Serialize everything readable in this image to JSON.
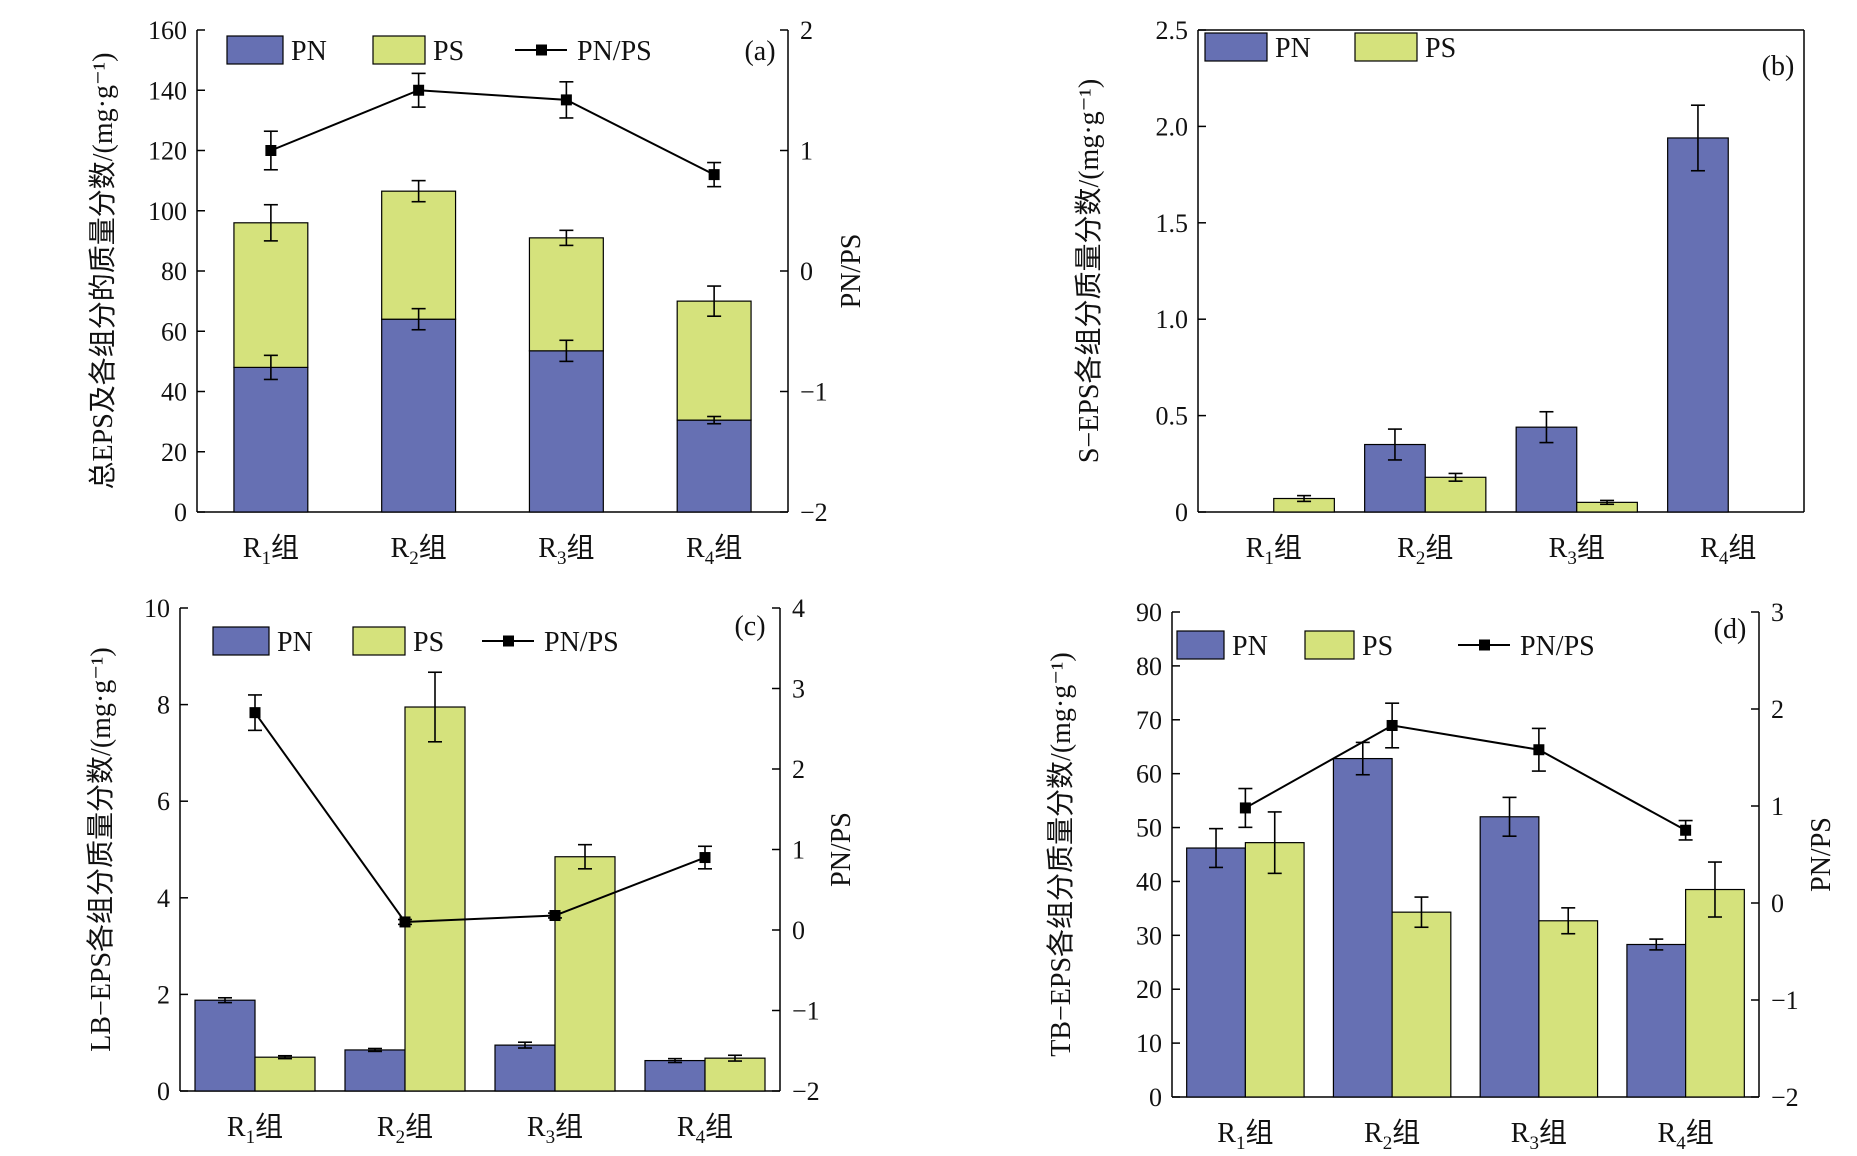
{
  "colors": {
    "pn": "#6670B3",
    "ps": "#D5E27C",
    "line": "#000000",
    "edge": "#000000"
  },
  "chart_data": [
    {
      "panel": "(a)",
      "type": "bar",
      "stacked": true,
      "categories": [
        "R1组",
        "R2组",
        "R3组",
        "R4组"
      ],
      "category_parts": [
        {
          "base": "R",
          "sub": "1",
          "tail": "组"
        },
        {
          "base": "R",
          "sub": "2",
          "tail": "组"
        },
        {
          "base": "R",
          "sub": "3",
          "tail": "组"
        },
        {
          "base": "R",
          "sub": "4",
          "tail": "组"
        }
      ],
      "ylabel": "总EPS及各组分的质量分数/(mg·g⁻¹)",
      "ylim": [
        0,
        160
      ],
      "yticks": [
        "0",
        "20",
        "40",
        "60",
        "80",
        "100",
        "120",
        "140",
        "160"
      ],
      "y2label": "PN/PS",
      "y2lim": [
        -2,
        2
      ],
      "y2ticks": [
        "−2",
        "−1",
        "0",
        "1",
        "2"
      ],
      "legend": [
        "PN",
        "PS",
        "PN/PS"
      ],
      "series": [
        {
          "name": "PN",
          "values": [
            48,
            64,
            53.5,
            30.5
          ],
          "err": [
            4,
            3.5,
            3.5,
            1.2
          ]
        },
        {
          "name": "PS",
          "values": [
            48,
            42.5,
            37.5,
            39.5
          ],
          "err": [
            6,
            3.5,
            2.5,
            5
          ]
        },
        {
          "name": "PN/PS",
          "axis": "right",
          "values": [
            1.0,
            1.5,
            1.42,
            0.8
          ],
          "err": [
            0.16,
            0.14,
            0.15,
            0.1
          ]
        }
      ]
    },
    {
      "panel": "(b)",
      "type": "bar",
      "stacked": false,
      "categories": [
        "R1组",
        "R2组",
        "R3组",
        "R4组"
      ],
      "category_parts": [
        {
          "base": "R",
          "sub": "1",
          "tail": "组"
        },
        {
          "base": "R",
          "sub": "2",
          "tail": "组"
        },
        {
          "base": "R",
          "sub": "3",
          "tail": "组"
        },
        {
          "base": "R",
          "sub": "4",
          "tail": "组"
        }
      ],
      "ylabel": "S−EPS各组分质量分数/(mg·g⁻¹)",
      "ylim": [
        0,
        2.5
      ],
      "yticks": [
        "0",
        "0.5",
        "1.0",
        "1.5",
        "2.0",
        "2.5"
      ],
      "legend": [
        "PN",
        "PS"
      ],
      "series": [
        {
          "name": "PN",
          "values": [
            0,
            0.35,
            0.44,
            1.94
          ],
          "err": [
            0,
            0.08,
            0.08,
            0.17
          ]
        },
        {
          "name": "PS",
          "values": [
            0.07,
            0.18,
            0.05,
            0
          ],
          "err": [
            0.015,
            0.02,
            0.01,
            0
          ]
        }
      ]
    },
    {
      "panel": "(c)",
      "type": "bar",
      "stacked": false,
      "categories": [
        "R1组",
        "R2组",
        "R3组",
        "R4组"
      ],
      "category_parts": [
        {
          "base": "R",
          "sub": "1",
          "tail": "组"
        },
        {
          "base": "R",
          "sub": "2",
          "tail": "组"
        },
        {
          "base": "R",
          "sub": "3",
          "tail": "组"
        },
        {
          "base": "R",
          "sub": "4",
          "tail": "组"
        }
      ],
      "ylabel": "LB−EPS各组分质量分数/(mg·g⁻¹)",
      "ylim": [
        0,
        10
      ],
      "yticks": [
        "0",
        "2",
        "4",
        "6",
        "8",
        "10"
      ],
      "y2label": "PN/PS",
      "y2lim": [
        -2,
        4
      ],
      "y2ticks": [
        "−2",
        "−1",
        "0",
        "1",
        "2",
        "3",
        "4"
      ],
      "legend": [
        "PN",
        "PS",
        "PN/PS"
      ],
      "series": [
        {
          "name": "PN",
          "values": [
            1.88,
            0.85,
            0.95,
            0.63
          ],
          "err": [
            0.05,
            0.03,
            0.06,
            0.04
          ]
        },
        {
          "name": "PS",
          "values": [
            0.7,
            7.95,
            4.85,
            0.68
          ],
          "err": [
            0.03,
            0.72,
            0.25,
            0.06
          ]
        },
        {
          "name": "PN/PS",
          "axis": "right",
          "values": [
            2.7,
            0.1,
            0.18,
            0.9
          ],
          "err": [
            0.22,
            0.03,
            0.03,
            0.14
          ]
        }
      ]
    },
    {
      "panel": "(d)",
      "type": "bar",
      "stacked": false,
      "categories": [
        "R1组",
        "R2组",
        "R3组",
        "R4组"
      ],
      "category_parts": [
        {
          "base": "R",
          "sub": "1",
          "tail": "组"
        },
        {
          "base": "R",
          "sub": "2",
          "tail": "组"
        },
        {
          "base": "R",
          "sub": "3",
          "tail": "组"
        },
        {
          "base": "R",
          "sub": "4",
          "tail": "组"
        }
      ],
      "ylabel": "TB−EPS各组分质量分数/(mg·g⁻¹)",
      "ylim": [
        0,
        90
      ],
      "yticks": [
        "0",
        "10",
        "20",
        "30",
        "40",
        "50",
        "60",
        "70",
        "80",
        "90"
      ],
      "y2label": "PN/PS",
      "y2lim": [
        -2,
        3
      ],
      "y2ticks": [
        "−2",
        "−1",
        "0",
        "1",
        "2",
        "3"
      ],
      "legend": [
        "PN",
        "PS",
        "PN/PS"
      ],
      "series": [
        {
          "name": "PN",
          "values": [
            46.2,
            62.8,
            52,
            28.3
          ],
          "err": [
            3.6,
            3,
            3.6,
            1
          ]
        },
        {
          "name": "PS",
          "values": [
            47.2,
            34.3,
            32.7,
            38.5
          ],
          "err": [
            5.7,
            2.8,
            2.4,
            5.1
          ]
        },
        {
          "name": "PN/PS",
          "axis": "right",
          "values": [
            0.98,
            1.83,
            1.58,
            0.75
          ],
          "err": [
            0.2,
            0.23,
            0.22,
            0.1
          ]
        }
      ]
    }
  ]
}
